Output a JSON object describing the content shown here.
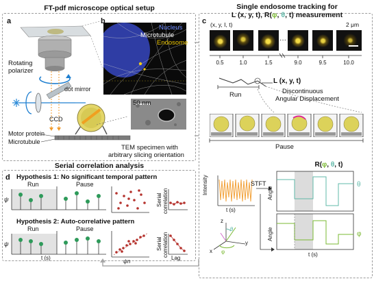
{
  "panel_a": {
    "title": "FT-pdf microscope optical setup",
    "letter": "a",
    "rotating_polarizer": "Rotating polarizer",
    "dot_mirror": "dot mirror",
    "ccd": "CCD",
    "motor_protein": "Motor protein",
    "microtubule": "Microtubule"
  },
  "panel_b": {
    "letter": "b",
    "legend_nucleus": "Nucleus",
    "legend_microtubule": "Microtubule",
    "legend_endosome": "Endosome",
    "scale_label": "50 nm",
    "tem_caption_line1": "TEM specimen with",
    "tem_caption_line2": "arbitrary slicing orientation",
    "colors": {
      "nucleus": "#4b6bff",
      "microtubule": "#ffffff",
      "endosome": "#e8c200"
    }
  },
  "panel_c": {
    "letter": "c",
    "title_line1": "Single endosome tracking for",
    "title_line2_a": "L (x, y, t), R(",
    "title_line2_phi": "φ",
    "title_line2_sep1": ", ",
    "title_line2_theta": "θ",
    "title_line2_b": ", t) measurement",
    "frame_header": "(x, y, I, t)",
    "scale_label": "2 μm",
    "times": [
      "0.5",
      "1.0",
      "1.5",
      "9.0",
      "9.5",
      "10.0"
    ],
    "ellipsis": "···",
    "L_label": "L (x, y, t)",
    "run_label": "Run",
    "discontinuous_line1": "Discontinuous",
    "discontinuous_line2": "Angular Displacement",
    "pause_label": "Pause",
    "r_title_a": "R(",
    "r_title_phi": "φ",
    "r_title_sep": ", ",
    "r_title_theta": "θ",
    "r_title_b": ", t)",
    "intensity_axis": "Intensity",
    "stft_label": "STFT",
    "t_s": "t (s)",
    "angle_axis": "Angle",
    "theta_symbol": "θ",
    "phi_symbol": "φ",
    "axis_x": "x",
    "axis_y": "y",
    "axis_z": "z",
    "colors": {
      "theta": "#5fb8a8",
      "phi": "#7ab832",
      "intensity": "#f2a23a"
    }
  },
  "panel_d": {
    "title": "Serial correlation analysis",
    "letter": "d",
    "hyp1": "Hypothesis 1: No significant temporal pattern",
    "hyp2": "Hypothesis 2: Auto-correlative pattern",
    "run_label": "Run",
    "pause_label": "Pause",
    "psi": "ψ",
    "serial": "Serial",
    "correlation": "correlation",
    "lag": "Lag",
    "t_s": "t (s)",
    "psi_n": "ψn",
    "psi_n1": "ψn+1"
  }
}
